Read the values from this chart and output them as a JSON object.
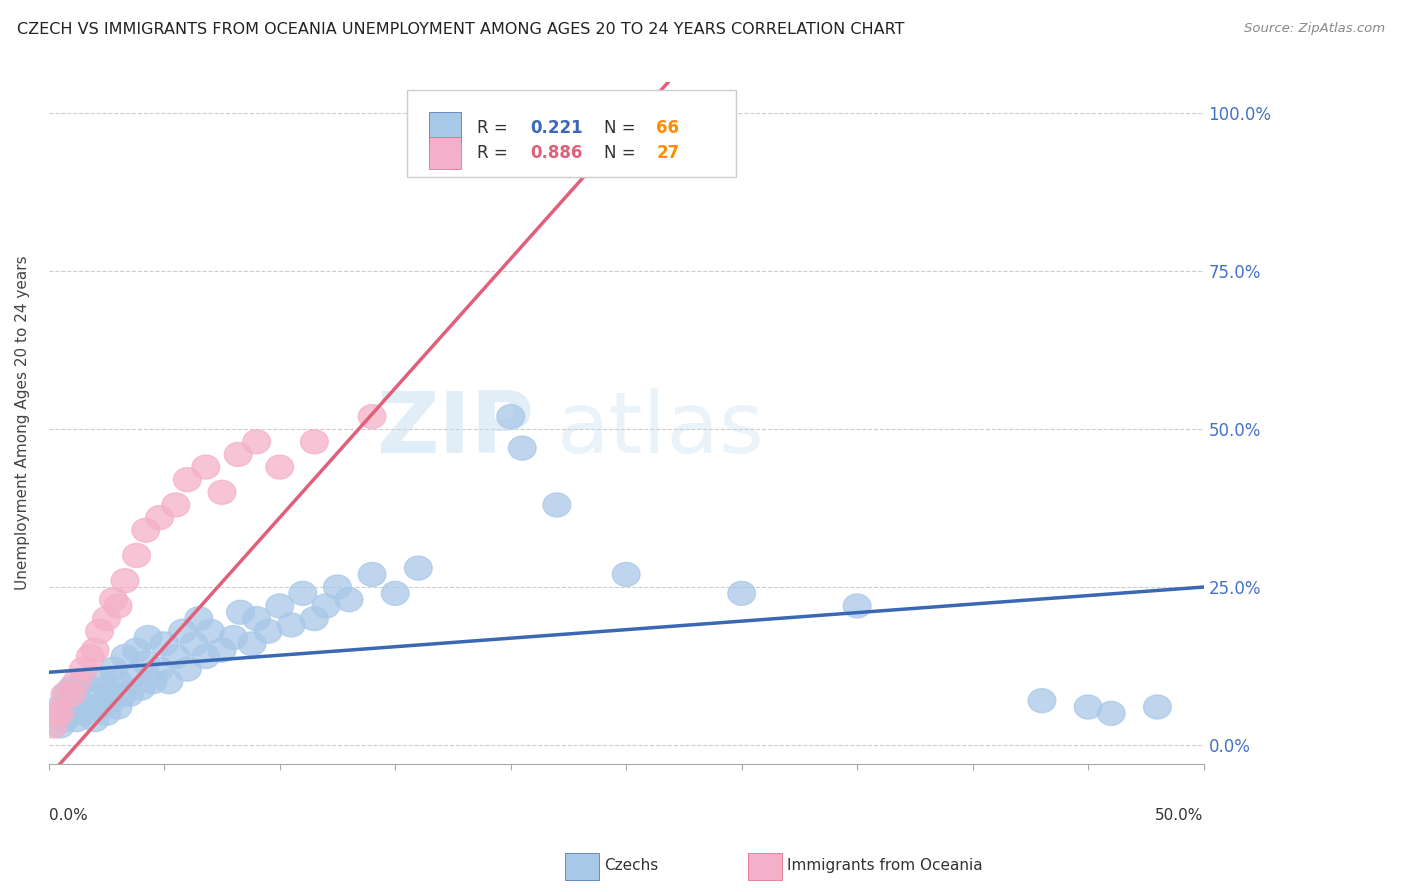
{
  "title": "CZECH VS IMMIGRANTS FROM OCEANIA UNEMPLOYMENT AMONG AGES 20 TO 24 YEARS CORRELATION CHART",
  "source": "Source: ZipAtlas.com",
  "ylabel": "Unemployment Among Ages 20 to 24 years",
  "right_yticks": [
    0.0,
    0.25,
    0.5,
    0.75,
    1.0
  ],
  "right_yticklabels": [
    "0.0%",
    "25.0%",
    "50.0%",
    "75.0%",
    "100.0%"
  ],
  "czech_color": "#a8c8e8",
  "czech_line_color": "#3a68b4",
  "oceania_color": "#f4b0c8",
  "oceania_line_color": "#e0607a",
  "czech_R": 0.221,
  "czech_N": 66,
  "oceania_R": 0.886,
  "oceania_N": 27,
  "watermark": "ZIPatlas",
  "legend_label_czech": "Czechs",
  "legend_label_oceania": "Immigrants from Oceania",
  "xmin": 0.0,
  "xmax": 0.5,
  "ymin": -0.03,
  "ymax": 1.05,
  "orange_color": "#ff8c00",
  "background_color": "#ffffff",
  "grid_color": "#cccccc",
  "title_color": "#222222",
  "axis_label_color": "#444444",
  "tick_label_color": "#4472c4",
  "czech_line_intercept": 0.115,
  "czech_line_slope": 0.27,
  "oceania_line_intercept": -0.05,
  "oceania_line_slope": 4.1
}
